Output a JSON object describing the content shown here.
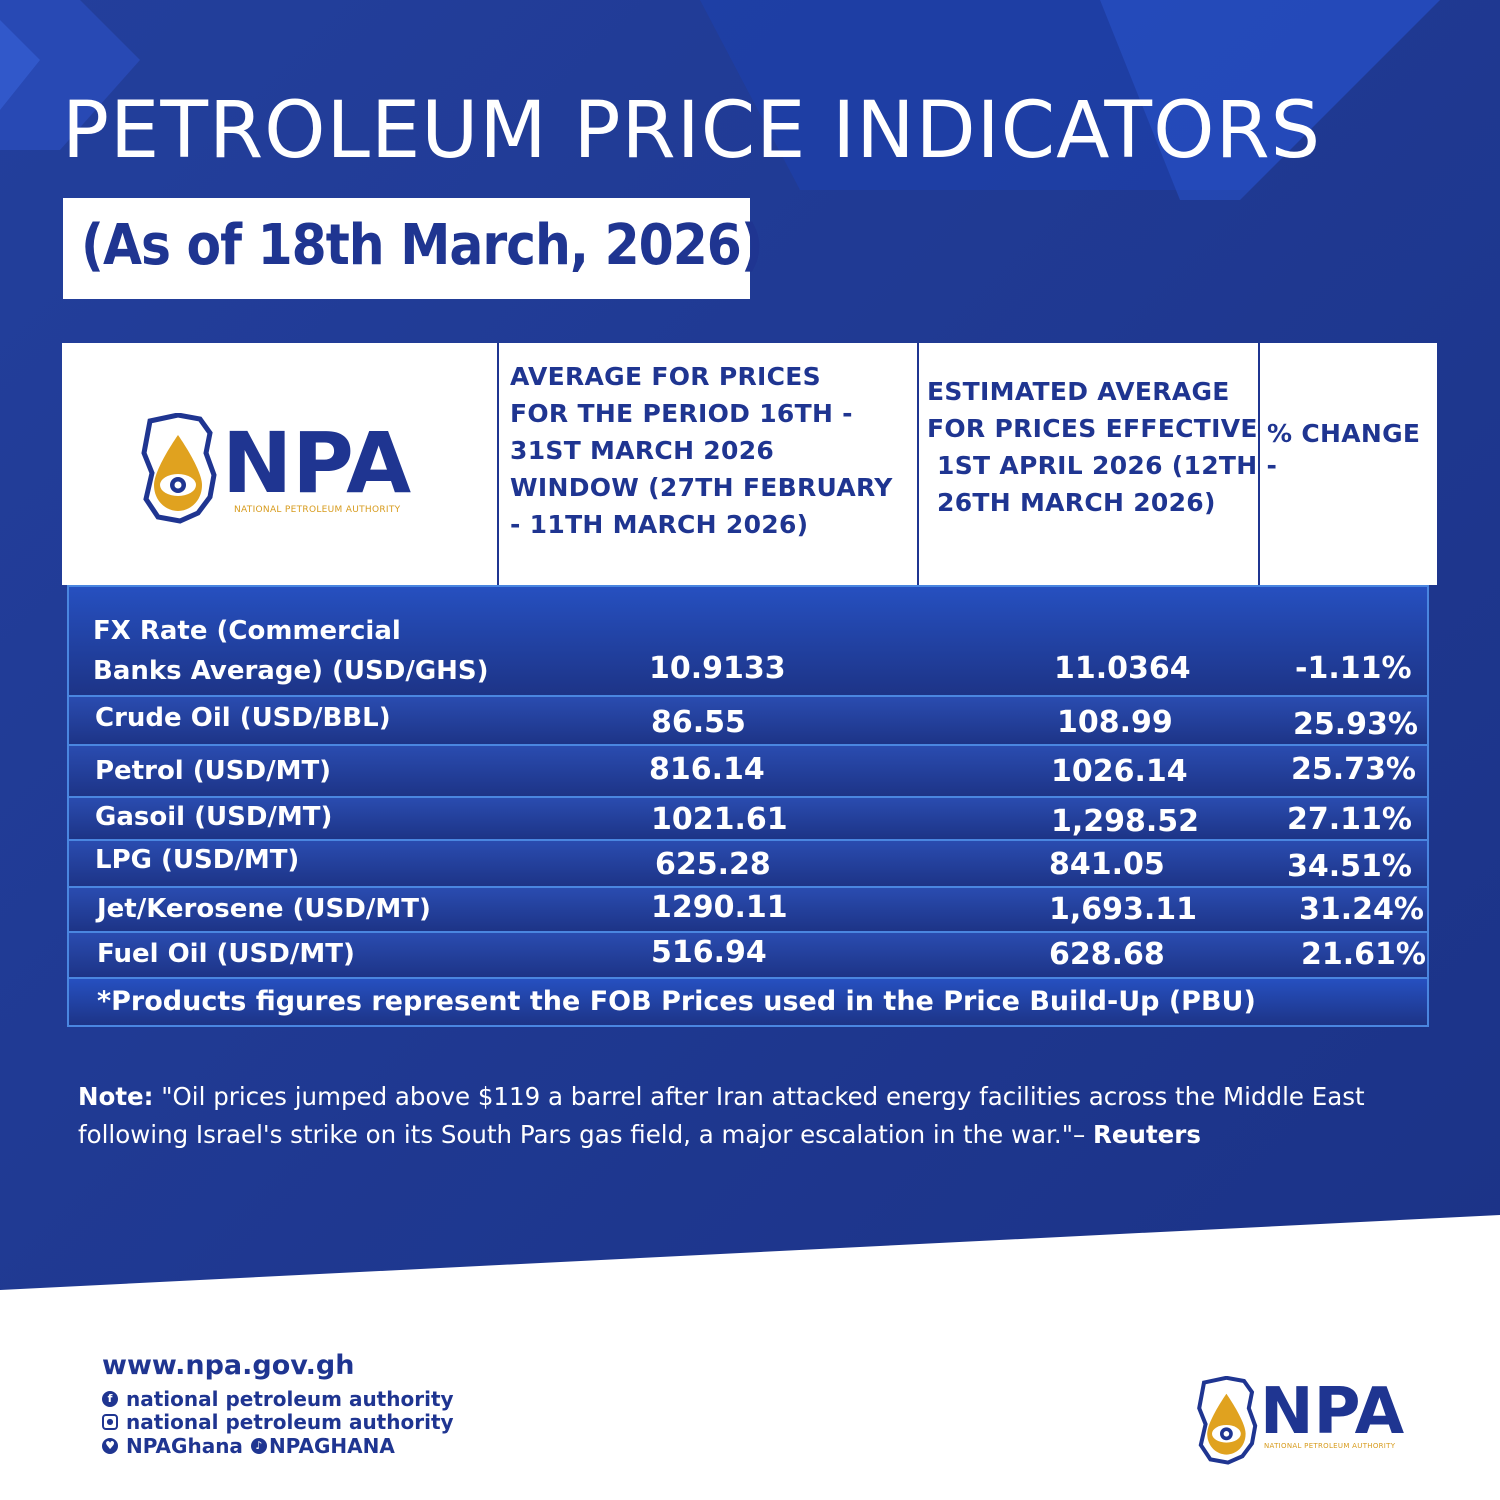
{
  "title": "PETROLEUM PRICE INDICATORS",
  "subtitle": "(As of 18th March, 2026)",
  "logo": {
    "initials": "NPA",
    "name": "NATIONAL PETROLEUM AUTHORITY"
  },
  "table": {
    "headers": {
      "col1": [
        "AVERAGE FOR PRICES",
        "FOR THE PERIOD 16TH -",
        "31ST MARCH 2026",
        "WINDOW (27TH FEBRUARY",
        "- 11TH MARCH 2026)"
      ],
      "col2": [
        "ESTIMATED AVERAGE",
        "FOR PRICES EFFECTIVE",
        "1ST APRIL 2026 (12TH -",
        "26TH MARCH 2026)"
      ],
      "col3": "% CHANGE"
    },
    "rows": [
      {
        "label": [
          "FX Rate (Commercial",
          "Banks Average) (USD/GHS)"
        ],
        "avg": "10.9133",
        "est": "11.0364",
        "change": "-1.11%"
      },
      {
        "label": [
          "Crude Oil (USD/BBL)"
        ],
        "avg": "86.55",
        "est": "108.99",
        "change": "25.93%"
      },
      {
        "label": [
          "Petrol (USD/MT)"
        ],
        "avg": "816.14",
        "est": "1026.14",
        "change": "25.73%"
      },
      {
        "label": [
          "Gasoil (USD/MT)"
        ],
        "avg": "1021.61",
        "est": "1,298.52",
        "change": "27.11%"
      },
      {
        "label": [
          "LPG (USD/MT)"
        ],
        "avg": "625.28",
        "est": "841.05",
        "change": "34.51%"
      },
      {
        "label": [
          "Jet/Kerosene (USD/MT)"
        ],
        "avg": "1290.11",
        "est": "1,693.11",
        "change": "31.24%"
      },
      {
        "label": [
          "Fuel Oil (USD/MT)"
        ],
        "avg": "516.94",
        "est": "628.68",
        "change": "21.61%"
      }
    ],
    "footnote": "*Products figures represent the FOB Prices used in the Price Build-Up (PBU)"
  },
  "note": {
    "label": "Note:",
    "text": " \"Oil prices jumped above $119 a barrel after Iran attacked energy facilities across ​the Middle East following Israel's strike on its South Pars gas field, a major escalation in the war.\"– ",
    "source": "Reuters"
  },
  "footer": {
    "url": "www.npa.gov.gh",
    "facebook": "national petroleum authority",
    "instagram": "national petroleum authority",
    "twitter": "NPAGhana",
    "tiktok": "NPAGHANA"
  },
  "colors": {
    "navy": "#1e3a8e",
    "accent": "#1f3591",
    "gold": "#e0a21f",
    "border": "#4a86e0"
  }
}
